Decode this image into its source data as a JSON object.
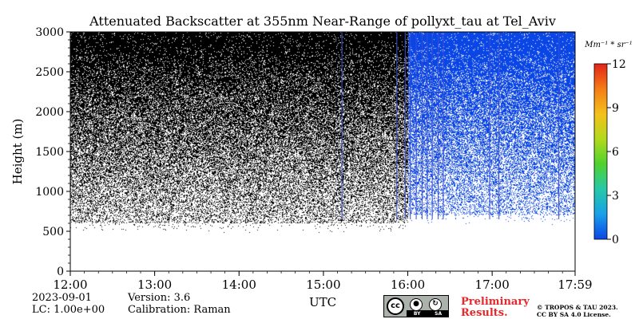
{
  "chart_data": {
    "type": "heatmap",
    "title": "Attenuated Backscatter at 355nm Near-Range of pollyxt_tau at Tel_Aviv",
    "ylabel": "Height (m)",
    "xlabel": "UTC",
    "x_ticks": [
      "12:00",
      "13:00",
      "14:00",
      "15:00",
      "16:00",
      "17:00",
      "17:59"
    ],
    "x_tick_hours": [
      12,
      13,
      14,
      15,
      16,
      17,
      17.983
    ],
    "xlim": [
      12,
      17.983
    ],
    "y_ticks": [
      "0",
      "500",
      "1000",
      "1500",
      "2000",
      "2500",
      "3000"
    ],
    "ylim": [
      0,
      3000
    ],
    "colorbar": {
      "unit": "Mm⁻¹ * sr⁻¹",
      "ticks": [
        "0",
        "3",
        "6",
        "9",
        "12"
      ],
      "range": [
        0,
        12
      ],
      "colors": [
        "#0a46e6",
        "#1aa0e8",
        "#25c9a8",
        "#4fd22e",
        "#b4d91c",
        "#f5c01a",
        "#f47d16",
        "#e4231a"
      ]
    },
    "regions": [
      {
        "time_range": [
          12,
          16.0
        ],
        "signal_base_m": 600,
        "color": "#000000",
        "description_value": "noise"
      },
      {
        "time_range": [
          16.0,
          17.983
        ],
        "signal_base_m": 700,
        "color": "#0a46e6",
        "description_value": "low"
      }
    ],
    "streaks_hours": [
      15.22,
      15.87,
      15.97,
      16.03,
      16.1,
      16.17,
      16.23,
      16.29,
      16.36,
      16.42,
      16.97,
      17.08,
      17.79
    ]
  },
  "footer": {
    "date": "2023-09-01",
    "lc": "LC: 1.00e+00",
    "version": "Version: 3.6",
    "calibration": "Calibration: Raman",
    "preliminary_line1": "Preliminary",
    "preliminary_line2": "Results.",
    "copyright_line1": "© TROPOS & TAU 2023.",
    "copyright_line2": "CC BY SA 4.0 License.",
    "cc_label": "cc",
    "by_label": "BY",
    "sa_label": "SA"
  },
  "colors": {
    "preliminary": "#e8272a",
    "noise": "#000000",
    "blue": "#0a46e6"
  }
}
